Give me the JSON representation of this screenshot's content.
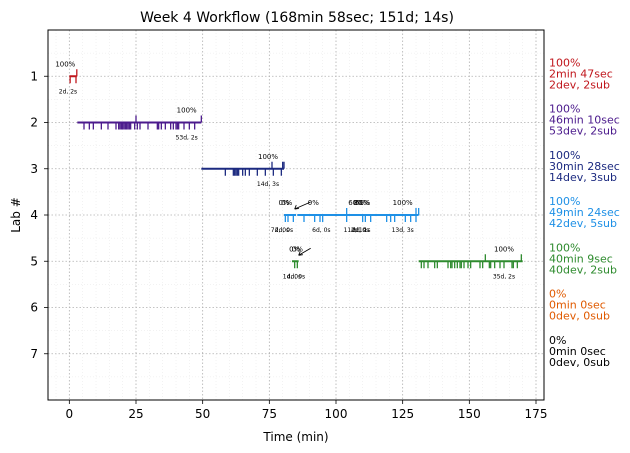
{
  "chart_data": {
    "type": "timeline",
    "title": "Week 4 Workflow (168min 58sec; 151d; 14s)",
    "xlabel": "Time (min)",
    "ylabel": "Lab #",
    "xlim": [
      -8,
      178
    ],
    "ylim": [
      8,
      0
    ],
    "xticks": [
      0,
      25,
      50,
      75,
      100,
      125,
      150,
      175
    ],
    "yticks": [
      1,
      2,
      3,
      4,
      5,
      6,
      7
    ],
    "grid": true,
    "labs": [
      {
        "lab": 1,
        "color": "#c0161c",
        "segments": [
          [
            0,
            2.8
          ]
        ],
        "pct_labels": [
          {
            "x": -1.5,
            "text": "100%"
          }
        ],
        "sub_labels": [
          {
            "x": -0.5,
            "text": "2d, 2s"
          }
        ],
        "dev_ticks": [
          0.3,
          2.5
        ],
        "sub_ticks": [
          2.8
        ],
        "summary": [
          "100%",
          "2min 47sec",
          "2dev, 2sub"
        ]
      },
      {
        "lab": 2,
        "color": "#4b1a8c",
        "segments": [
          [
            3,
            49.5
          ]
        ],
        "pct_labels": [
          {
            "x": 44,
            "text": "100%"
          }
        ],
        "sub_labels": [
          {
            "x": 44,
            "text": "53d, 2s"
          }
        ],
        "dev_ticks": [
          5.5,
          7.5,
          9,
          12,
          14.5,
          17.5,
          18.5,
          19,
          19.5,
          20,
          20.5,
          21,
          21.5,
          22,
          22.5,
          23,
          24.5,
          25.5,
          26.5,
          29.5,
          33,
          33.5,
          34.5,
          36,
          38,
          39,
          40,
          40.5,
          41,
          43,
          45,
          47
        ],
        "sub_ticks": [
          25,
          49.5
        ],
        "summary": [
          "100%",
          "46min 10sec",
          "53dev, 2sub"
        ]
      },
      {
        "lab": 3,
        "color": "#1c2a80",
        "segments": [
          [
            49.5,
            80.5
          ]
        ],
        "pct_labels": [
          {
            "x": 74.5,
            "text": "100%"
          }
        ],
        "sub_labels": [
          {
            "x": 74.5,
            "text": "14d, 3s"
          }
        ],
        "dev_ticks": [
          58.5,
          61.5,
          62,
          62.5,
          63,
          63.5,
          65,
          66,
          67.5,
          70.5,
          73.5,
          76.5,
          79.5
        ],
        "sub_ticks": [
          76,
          80,
          80.5
        ],
        "summary": [
          "100%",
          "30min 28sec",
          "14dev, 3sub"
        ]
      },
      {
        "lab": 4,
        "color": "#1e90e6",
        "segments": [
          [
            80.5,
            85
          ],
          [
            85.5,
            131
          ]
        ],
        "pct_labels": [
          {
            "x": 80.5,
            "text": "0%"
          },
          {
            "x": 81.5,
            "text": "0%"
          },
          {
            "x": 91.5,
            "text": "0%"
          },
          {
            "x": 107.5,
            "text": "60%"
          },
          {
            "x": 109.5,
            "text": "80%"
          },
          {
            "x": 110,
            "text": "60%"
          },
          {
            "x": 125,
            "text": "100%"
          }
        ],
        "sub_labels": [
          {
            "x": 79,
            "text": "7d, 0s"
          },
          {
            "x": 80.5,
            "text": "2d, 0s"
          },
          {
            "x": 94.5,
            "text": "6d, 0s"
          },
          {
            "x": 107,
            "text": "11d, 1s"
          },
          {
            "x": 109,
            "text": "2d, 0s"
          },
          {
            "x": 109.5,
            "text": "2d, 1s"
          },
          {
            "x": 125,
            "text": "13d, 3s"
          }
        ],
        "dev_ticks": [
          81,
          82,
          84,
          88,
          92,
          94,
          95,
          104,
          110,
          111,
          113,
          119,
          120.5,
          122,
          126,
          128,
          130
        ],
        "sub_ticks": [
          104,
          130,
          131
        ],
        "arrow": {
          "from_x": 90.5,
          "to_x": 84.5
        },
        "summary": [
          "100%",
          "49min 24sec",
          "42dev, 5sub"
        ]
      },
      {
        "lab": 5,
        "color": "#2e8b2e",
        "segments": [
          [
            83.5,
            86
          ],
          [
            131,
            170
          ]
        ],
        "pct_labels": [
          {
            "x": 84.5,
            "text": "0%"
          },
          {
            "x": 85.5,
            "text": "0%"
          },
          {
            "x": 163,
            "text": "100%"
          }
        ],
        "sub_labels": [
          {
            "x": 83.5,
            "text": "1d, 0s"
          },
          {
            "x": 85,
            "text": "4d, 0s"
          },
          {
            "x": 163,
            "text": "35d, 2s"
          }
        ],
        "dev_ticks": [
          84.5,
          85.5,
          132,
          133,
          134.5,
          137,
          138,
          142,
          143,
          143.5,
          144.5,
          145.5,
          146.5,
          147,
          148,
          149.5,
          150.5,
          154,
          155,
          157.5,
          158,
          159.5,
          161.5,
          163,
          166,
          166.5,
          168
        ],
        "sub_ticks": [
          156,
          169.5
        ],
        "arrow": {
          "from_x": 90.5,
          "to_x": 86
        },
        "summary": [
          "100%",
          "40min 9sec",
          "40dev, 2sub"
        ]
      },
      {
        "lab": 6,
        "color": "#e05a00",
        "segments": [],
        "summary": [
          "0%",
          "0min 0sec",
          "0dev, 0sub"
        ]
      },
      {
        "lab": 7,
        "color": "#000000",
        "segments": [],
        "summary": [
          "0%",
          "0min 0sec",
          "0dev, 0sub"
        ]
      }
    ]
  }
}
